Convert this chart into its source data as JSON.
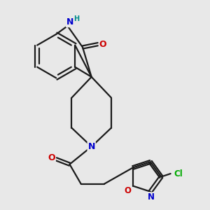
{
  "bg_color": "#e8e8e8",
  "bond_color": "#1a1a1a",
  "bond_width": 1.6,
  "atom_colors": {
    "N": "#0000cc",
    "O": "#cc0000",
    "Cl": "#00aa00",
    "H": "#008b8b",
    "C": "#1a1a1a"
  },
  "font_size": 8.5,
  "fig_size": [
    3.0,
    3.0
  ],
  "dpi": 100
}
